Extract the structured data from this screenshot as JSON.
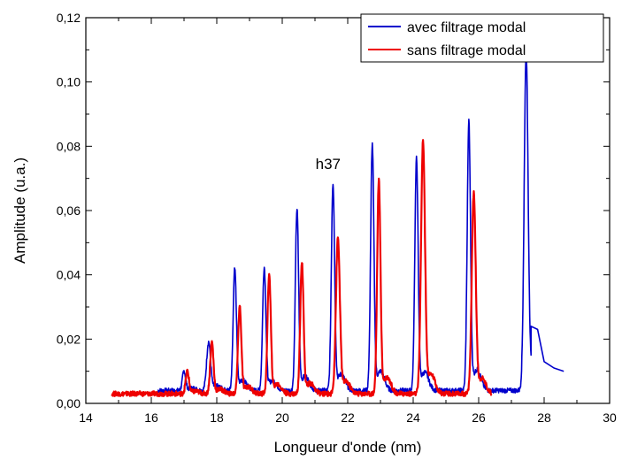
{
  "chart_data": {
    "type": "line",
    "xlabel": "Longueur d'onde (nm)",
    "ylabel": "Amplitude (u.a.)",
    "xlim": [
      14,
      30
    ],
    "ylim": [
      0,
      0.12
    ],
    "x_ticks": [
      14,
      16,
      18,
      20,
      22,
      24,
      26,
      28,
      30
    ],
    "x_tick_labels": [
      "14",
      "16",
      "18",
      "20",
      "22",
      "24",
      "26",
      "28",
      "30"
    ],
    "y_ticks": [
      0,
      0.02,
      0.04,
      0.06,
      0.08,
      0.1,
      0.12
    ],
    "y_tick_labels": [
      "0,00",
      "0,02",
      "0,04",
      "0,06",
      "0,08",
      "0,10",
      "0,12"
    ],
    "legend_position": "top-right",
    "annotations": [
      {
        "text": "h37",
        "x": 21.4,
        "y": 0.073
      }
    ],
    "series": [
      {
        "name": "avec filtrage modal",
        "color": "#0000cc",
        "x_range": [
          16.2,
          28.6
        ],
        "baseline": 0.004,
        "peaks": [
          {
            "x": 17.0,
            "y": 0.01,
            "w": 0.05
          },
          {
            "x": 17.75,
            "y": 0.019,
            "w": 0.06
          },
          {
            "x": 18.55,
            "y": 0.042,
            "w": 0.05
          },
          {
            "x": 19.45,
            "y": 0.042,
            "w": 0.05
          },
          {
            "x": 20.45,
            "y": 0.06,
            "w": 0.05
          },
          {
            "x": 21.55,
            "y": 0.068,
            "w": 0.05
          },
          {
            "x": 22.75,
            "y": 0.08,
            "w": 0.05
          },
          {
            "x": 24.1,
            "y": 0.076,
            "w": 0.05
          },
          {
            "x": 25.7,
            "y": 0.087,
            "w": 0.05
          },
          {
            "x": 27.45,
            "y": 0.108,
            "w": 0.06
          }
        ],
        "tail": [
          [
            27.6,
            0.024
          ],
          [
            27.8,
            0.023
          ],
          [
            28.0,
            0.013
          ],
          [
            28.3,
            0.011
          ],
          [
            28.6,
            0.01
          ]
        ]
      },
      {
        "name": "sans filtrage modal",
        "color": "#ee0000",
        "x_range": [
          14.8,
          26.4
        ],
        "baseline": 0.003,
        "peaks": [
          {
            "x": 17.1,
            "y": 0.01,
            "w": 0.05
          },
          {
            "x": 17.85,
            "y": 0.019,
            "w": 0.05
          },
          {
            "x": 18.7,
            "y": 0.03,
            "w": 0.05
          },
          {
            "x": 19.6,
            "y": 0.04,
            "w": 0.05
          },
          {
            "x": 20.6,
            "y": 0.044,
            "w": 0.05
          },
          {
            "x": 21.7,
            "y": 0.051,
            "w": 0.06
          },
          {
            "x": 22.95,
            "y": 0.069,
            "w": 0.05
          },
          {
            "x": 24.3,
            "y": 0.081,
            "w": 0.06
          },
          {
            "x": 25.85,
            "y": 0.065,
            "w": 0.06
          }
        ],
        "tail": []
      }
    ]
  }
}
